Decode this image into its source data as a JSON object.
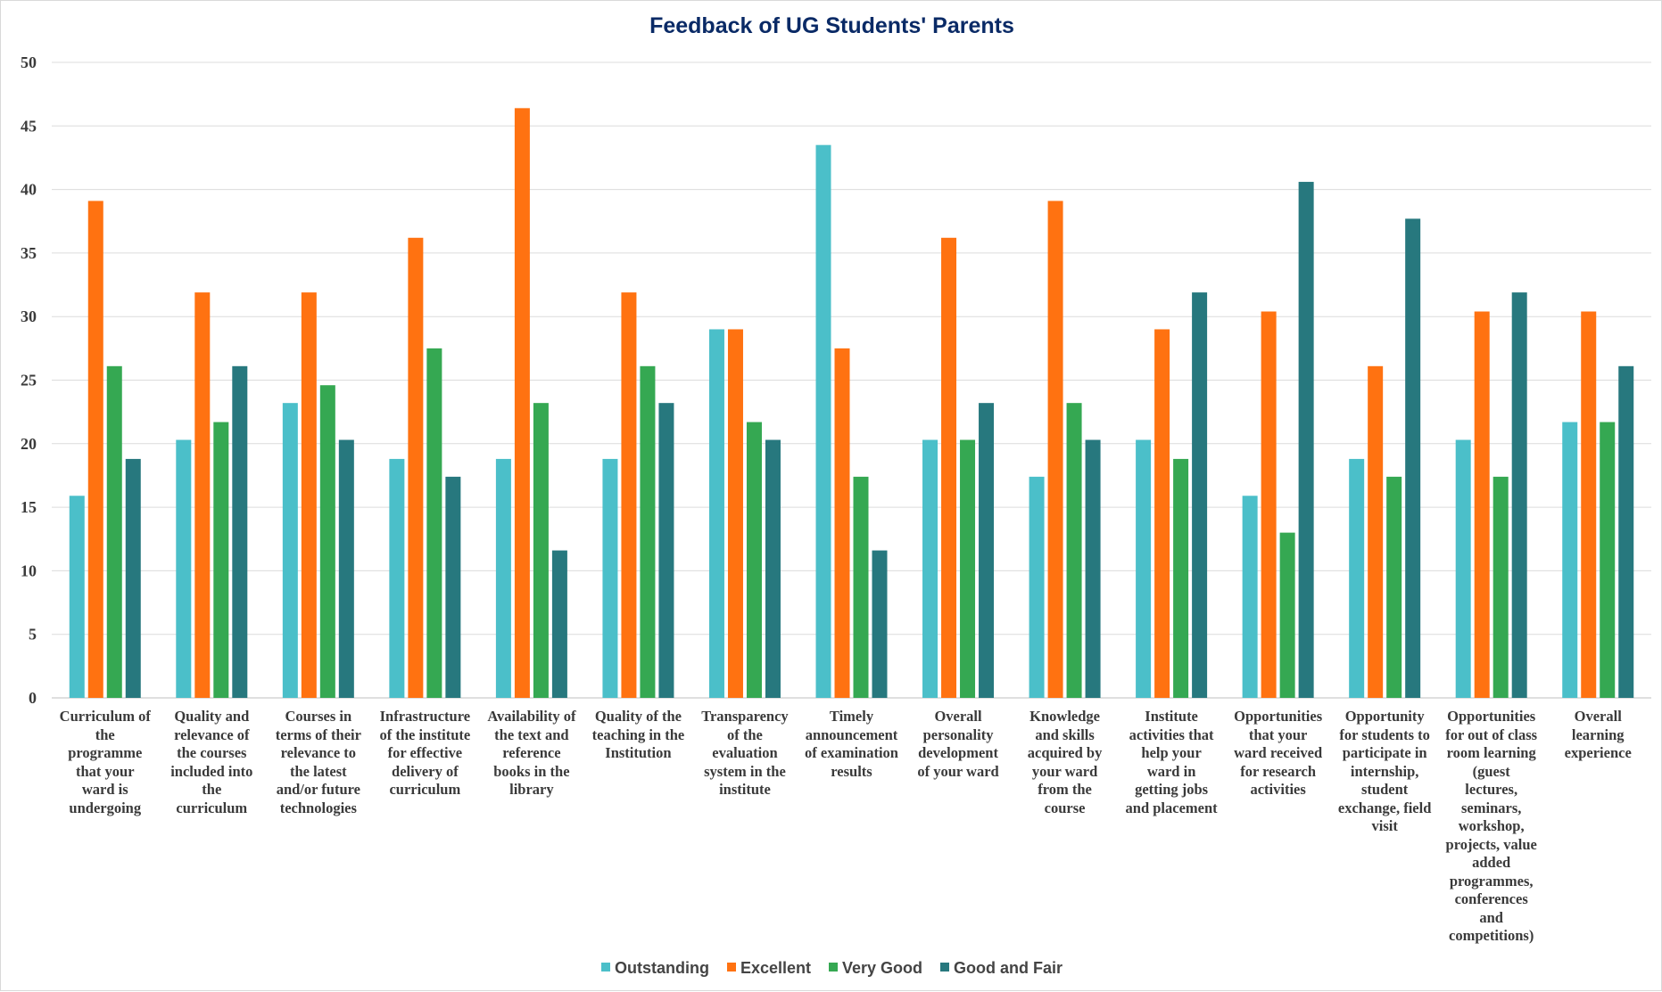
{
  "chart_data": {
    "type": "bar",
    "title": "Feedback of UG Students' Parents",
    "xlabel": "",
    "ylabel": "",
    "ylim": [
      0,
      50
    ],
    "yticks": [
      0,
      5,
      10,
      15,
      20,
      25,
      30,
      35,
      40,
      45,
      50
    ],
    "grid": true,
    "legend_position": "bottom",
    "categories": [
      "Curriculum of the programme that your ward is undergoing",
      "Quality and relevance of the courses included into the curriculum",
      "Courses in terms of their relevance to the latest and/or future technologies",
      "Infrastructure of the institute for effective delivery of curriculum",
      "Availability of the text and reference books in the library",
      "Quality of the teaching in the Institution",
      "Transparency of the evaluation system in the institute",
      "Timely announcement of examination results",
      "Overall personality development of your ward",
      "Knowledge and skills acquired by your ward from the course",
      "Institute activities that help your ward in getting jobs and placement",
      "Opportunities that your ward received for research activities",
      "Opportunity for students to participate in internship, student exchange, field visit",
      "Opportunities for out of class room learning (guest lectures, seminars, workshop, projects, value added programmes, conferences and competitions)",
      "Overall learning experience"
    ],
    "category_lines": [
      [
        "Curriculum of",
        "the",
        "programme",
        "that your",
        "ward is",
        "undergoing"
      ],
      [
        "Quality and",
        "relevance of",
        "the courses",
        "included into",
        "the",
        "curriculum"
      ],
      [
        "Courses in",
        "terms of their",
        "relevance to",
        "the latest",
        "and/or future",
        "technologies"
      ],
      [
        "Infrastructure",
        "of the institute",
        "for effective",
        "delivery of",
        "curriculum"
      ],
      [
        "Availability of",
        "the text and",
        "reference",
        "books in the",
        "library"
      ],
      [
        "Quality of the",
        "teaching in the",
        "Institution"
      ],
      [
        "Transparency",
        "of the",
        "evaluation",
        "system in the",
        "institute"
      ],
      [
        "Timely",
        "announcement",
        "of examination",
        "results"
      ],
      [
        "Overall",
        "personality",
        "development",
        "of your ward"
      ],
      [
        "Knowledge",
        "and skills",
        "acquired by",
        "your ward",
        "from the",
        "course"
      ],
      [
        "Institute",
        "activities that",
        "help your",
        "ward in",
        "getting jobs",
        "and placement"
      ],
      [
        "Opportunities",
        "that your",
        "ward received",
        "for research",
        "activities"
      ],
      [
        "Opportunity",
        "for students to",
        "participate in",
        "internship,",
        "student",
        "exchange, field",
        "visit"
      ],
      [
        "Opportunities",
        "for out of class",
        "room learning",
        "(guest",
        "lectures,",
        "seminars,",
        "workshop,",
        "projects, value",
        "added",
        "programmes,",
        "conferences",
        "and",
        "competitions)"
      ],
      [
        "Overall",
        "learning",
        "experience"
      ]
    ],
    "series": [
      {
        "name": "Outstanding",
        "color": "#4bbfc9",
        "values": [
          15.9,
          20.3,
          23.2,
          18.8,
          18.8,
          18.8,
          29.0,
          43.5,
          20.3,
          17.4,
          20.3,
          15.9,
          18.8,
          20.3,
          21.7
        ]
      },
      {
        "name": "Excellent",
        "color": "#ff7211",
        "values": [
          39.1,
          31.9,
          31.9,
          36.2,
          46.4,
          31.9,
          29.0,
          27.5,
          36.2,
          39.1,
          29.0,
          30.4,
          26.1,
          30.4,
          30.4
        ]
      },
      {
        "name": "Very Good",
        "color": "#35a852",
        "values": [
          26.1,
          21.7,
          24.6,
          27.5,
          23.2,
          26.1,
          21.7,
          17.4,
          20.3,
          23.2,
          18.8,
          13.0,
          17.4,
          17.4,
          21.7
        ]
      },
      {
        "name": "Good and Fair",
        "color": "#27787e",
        "values": [
          18.8,
          26.1,
          20.3,
          17.4,
          11.6,
          23.2,
          20.3,
          11.6,
          23.2,
          20.3,
          31.9,
          40.6,
          37.7,
          31.9,
          26.1
        ]
      }
    ]
  }
}
